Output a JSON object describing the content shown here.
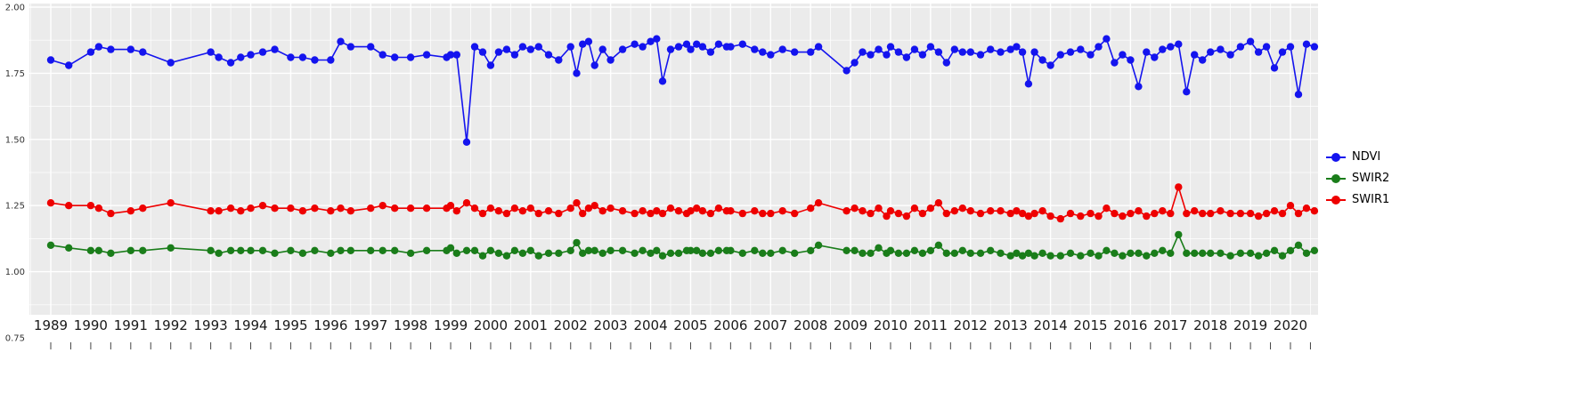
{
  "chart_data": {
    "type": "line",
    "title": "",
    "xlabel": "",
    "ylabel": "",
    "panel_bg": "#EBEBEB",
    "grid_color": "#FFFFFF",
    "background": "#FFFFFF",
    "legend_position": "right",
    "y_range": [
      0.75,
      2.0
    ],
    "x_range": [
      1989,
      2020
    ],
    "y_ticks": [
      "2.00",
      "1.75",
      "1.50",
      "1.25",
      "1.00",
      "0.75"
    ],
    "x_ticks": [
      1989,
      1990,
      1991,
      1992,
      1993,
      1994,
      1995,
      1996,
      1997,
      1998,
      1999,
      2000,
      2001,
      2002,
      2003,
      2004,
      2005,
      2006,
      2007,
      2008,
      2009,
      2010,
      2011,
      2012,
      2013,
      2014,
      2015,
      2016,
      2017,
      2018,
      2019,
      2020
    ],
    "x": [
      1989.0,
      1989.45,
      1990.0,
      1990.2,
      1990.5,
      1991.0,
      1991.3,
      1992.0,
      1993.0,
      1993.2,
      1993.5,
      1993.75,
      1994.0,
      1994.3,
      1994.6,
      1995.0,
      1995.3,
      1995.6,
      1996.0,
      1996.25,
      1996.5,
      1997.0,
      1997.3,
      1997.6,
      1998.0,
      1998.4,
      1998.9,
      1999.0,
      1999.15,
      1999.4,
      1999.6,
      1999.8,
      2000.0,
      2000.2,
      2000.4,
      2000.6,
      2000.8,
      2001.0,
      2001.2,
      2001.45,
      2001.7,
      2002.0,
      2002.15,
      2002.3,
      2002.45,
      2002.6,
      2002.8,
      2003.0,
      2003.3,
      2003.6,
      2003.8,
      2004.0,
      2004.15,
      2004.3,
      2004.5,
      2004.7,
      2004.9,
      2005.0,
      2005.15,
      2005.3,
      2005.5,
      2005.7,
      2005.9,
      2006.0,
      2006.3,
      2006.6,
      2006.8,
      2007.0,
      2007.3,
      2007.6,
      2008.0,
      2008.2,
      2008.9,
      2009.1,
      2009.3,
      2009.5,
      2009.7,
      2009.9,
      2010.0,
      2010.2,
      2010.4,
      2010.6,
      2010.8,
      2011.0,
      2011.2,
      2011.4,
      2011.6,
      2011.8,
      2012.0,
      2012.25,
      2012.5,
      2012.75,
      2013.0,
      2013.15,
      2013.3,
      2013.45,
      2013.6,
      2013.8,
      2014.0,
      2014.25,
      2014.5,
      2014.75,
      2015.0,
      2015.2,
      2015.4,
      2015.6,
      2015.8,
      2016.0,
      2016.2,
      2016.4,
      2016.6,
      2016.8,
      2017.0,
      2017.2,
      2017.4,
      2017.6,
      2017.8,
      2018.0,
      2018.25,
      2018.5,
      2018.75,
      2019.0,
      2019.2,
      2019.4,
      2019.6,
      2019.8,
      2020.0,
      2020.2,
      2020.4,
      2020.6
    ],
    "series": [
      {
        "name": "NDVI",
        "color": "#1414EE",
        "values": [
          1.8,
          1.78,
          1.83,
          1.85,
          1.84,
          1.84,
          1.83,
          1.79,
          1.83,
          1.81,
          1.79,
          1.81,
          1.82,
          1.83,
          1.84,
          1.81,
          1.81,
          1.8,
          1.8,
          1.87,
          1.85,
          1.85,
          1.82,
          1.81,
          1.81,
          1.82,
          1.81,
          1.82,
          1.82,
          1.49,
          1.85,
          1.83,
          1.78,
          1.83,
          1.84,
          1.82,
          1.85,
          1.84,
          1.85,
          1.82,
          1.8,
          1.85,
          1.75,
          1.86,
          1.87,
          1.78,
          1.84,
          1.8,
          1.84,
          1.86,
          1.85,
          1.87,
          1.88,
          1.72,
          1.84,
          1.85,
          1.86,
          1.84,
          1.86,
          1.85,
          1.83,
          1.86,
          1.85,
          1.85,
          1.86,
          1.84,
          1.83,
          1.82,
          1.84,
          1.83,
          1.83,
          1.85,
          1.76,
          1.79,
          1.83,
          1.82,
          1.84,
          1.82,
          1.85,
          1.83,
          1.81,
          1.84,
          1.82,
          1.85,
          1.83,
          1.79,
          1.84,
          1.83,
          1.83,
          1.82,
          1.84,
          1.83,
          1.84,
          1.85,
          1.83,
          1.71,
          1.83,
          1.8,
          1.78,
          1.82,
          1.83,
          1.84,
          1.82,
          1.85,
          1.88,
          1.79,
          1.82,
          1.8,
          1.7,
          1.83,
          1.81,
          1.84,
          1.85,
          1.86,
          1.68,
          1.82,
          1.8,
          1.83,
          1.84,
          1.82,
          1.85,
          1.87,
          1.83,
          1.85,
          1.77,
          1.83,
          1.85,
          1.67,
          1.86,
          1.85
        ]
      },
      {
        "name": "SWIR2",
        "color": "#1A7D1A",
        "values": [
          1.1,
          1.09,
          1.08,
          1.08,
          1.07,
          1.08,
          1.08,
          1.09,
          1.08,
          1.07,
          1.08,
          1.08,
          1.08,
          1.08,
          1.07,
          1.08,
          1.07,
          1.08,
          1.07,
          1.08,
          1.08,
          1.08,
          1.08,
          1.08,
          1.07,
          1.08,
          1.08,
          1.09,
          1.07,
          1.08,
          1.08,
          1.06,
          1.08,
          1.07,
          1.06,
          1.08,
          1.07,
          1.08,
          1.06,
          1.07,
          1.07,
          1.08,
          1.11,
          1.07,
          1.08,
          1.08,
          1.07,
          1.08,
          1.08,
          1.07,
          1.08,
          1.07,
          1.08,
          1.06,
          1.07,
          1.07,
          1.08,
          1.08,
          1.08,
          1.07,
          1.07,
          1.08,
          1.08,
          1.08,
          1.07,
          1.08,
          1.07,
          1.07,
          1.08,
          1.07,
          1.08,
          1.1,
          1.08,
          1.08,
          1.07,
          1.07,
          1.09,
          1.07,
          1.08,
          1.07,
          1.07,
          1.08,
          1.07,
          1.08,
          1.1,
          1.07,
          1.07,
          1.08,
          1.07,
          1.07,
          1.08,
          1.07,
          1.06,
          1.07,
          1.06,
          1.07,
          1.06,
          1.07,
          1.06,
          1.06,
          1.07,
          1.06,
          1.07,
          1.06,
          1.08,
          1.07,
          1.06,
          1.07,
          1.07,
          1.06,
          1.07,
          1.08,
          1.07,
          1.14,
          1.07,
          1.07,
          1.07,
          1.07,
          1.07,
          1.06,
          1.07,
          1.07,
          1.06,
          1.07,
          1.08,
          1.06,
          1.08,
          1.1,
          1.07,
          1.08
        ]
      },
      {
        "name": "SWIR1",
        "color": "#EE0000",
        "values": [
          1.26,
          1.25,
          1.25,
          1.24,
          1.22,
          1.23,
          1.24,
          1.26,
          1.23,
          1.23,
          1.24,
          1.23,
          1.24,
          1.25,
          1.24,
          1.24,
          1.23,
          1.24,
          1.23,
          1.24,
          1.23,
          1.24,
          1.25,
          1.24,
          1.24,
          1.24,
          1.24,
          1.25,
          1.23,
          1.26,
          1.24,
          1.22,
          1.24,
          1.23,
          1.22,
          1.24,
          1.23,
          1.24,
          1.22,
          1.23,
          1.22,
          1.24,
          1.26,
          1.22,
          1.24,
          1.25,
          1.23,
          1.24,
          1.23,
          1.22,
          1.23,
          1.22,
          1.23,
          1.22,
          1.24,
          1.23,
          1.22,
          1.23,
          1.24,
          1.23,
          1.22,
          1.24,
          1.23,
          1.23,
          1.22,
          1.23,
          1.22,
          1.22,
          1.23,
          1.22,
          1.24,
          1.26,
          1.23,
          1.24,
          1.23,
          1.22,
          1.24,
          1.21,
          1.23,
          1.22,
          1.21,
          1.24,
          1.22,
          1.24,
          1.26,
          1.22,
          1.23,
          1.24,
          1.23,
          1.22,
          1.23,
          1.23,
          1.22,
          1.23,
          1.22,
          1.21,
          1.22,
          1.23,
          1.21,
          1.2,
          1.22,
          1.21,
          1.22,
          1.21,
          1.24,
          1.22,
          1.21,
          1.22,
          1.23,
          1.21,
          1.22,
          1.23,
          1.22,
          1.32,
          1.22,
          1.23,
          1.22,
          1.22,
          1.23,
          1.22,
          1.22,
          1.22,
          1.21,
          1.22,
          1.23,
          1.22,
          1.25,
          1.22,
          1.24,
          1.23
        ]
      }
    ]
  }
}
